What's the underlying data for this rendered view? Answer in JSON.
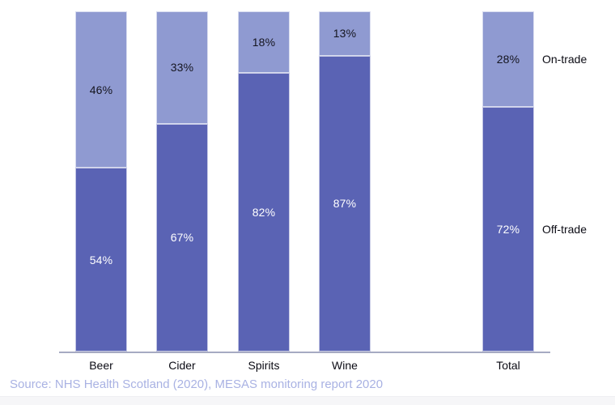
{
  "chart_data": {
    "type": "bar",
    "stacked": true,
    "orientation": "vertical",
    "categories": [
      "Beer",
      "Cider",
      "Spirits",
      "Wine",
      "Total"
    ],
    "series": [
      {
        "name": "On-trade",
        "values": [
          46,
          33,
          18,
          13,
          28
        ],
        "labels": [
          "46%",
          "33%",
          "18%",
          "13%",
          "28%"
        ],
        "color": "#8f9ad1",
        "label_color": "#15151f"
      },
      {
        "name": "Off-trade",
        "values": [
          54,
          67,
          82,
          87,
          72
        ],
        "labels": [
          "54%",
          "67%",
          "82%",
          "87%",
          "72%"
        ],
        "color": "#5a63b4",
        "label_color": "#ffffff"
      }
    ],
    "value_suffix": "%",
    "ylim": [
      0,
      100
    ],
    "grid": false,
    "xlabel": "",
    "ylabel": "",
    "title": "",
    "legend_position": "right-of-total-bar",
    "legend_entries": [
      "On-trade",
      "Off-trade"
    ]
  },
  "legend": {
    "on_trade": "On-trade",
    "off_trade": "Off-trade"
  },
  "source": {
    "text": "Source: NHS Health Scotland (2020), MESAS monitoring report 2020"
  },
  "colors": {
    "on_trade": "#8f9ad1",
    "off_trade": "#5a63b4",
    "axis_line": "#a6aac2",
    "source_text": "#a9b2e3",
    "category_text": "#0b0b14"
  }
}
